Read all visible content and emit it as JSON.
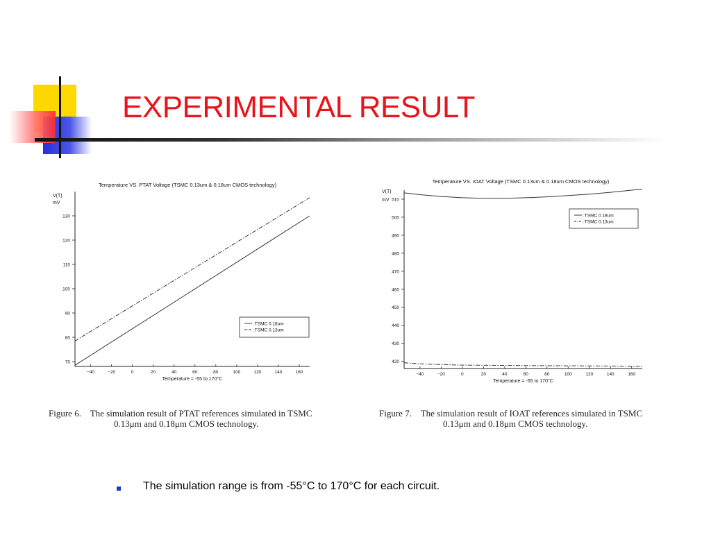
{
  "slide": {
    "title": "EXPERIMENTAL RESULT",
    "bullet": "The simulation range is from -55°C to 170°C for each circuit.",
    "colors": {
      "title": "#e8141c",
      "bullet": "#1a3cc8"
    }
  },
  "captions": [
    {
      "label": "Figure 6.",
      "line1": "The simulation result of PTAT references simulated in TSMC",
      "line2": "0.13μm and 0.18μm CMOS technology."
    },
    {
      "label": "Figure 7.",
      "line1": "The simulation result of IOAT references simulated in TSMC",
      "line2": "0.13μm and 0.18μm CMOS technology."
    }
  ],
  "chart_data": [
    {
      "type": "line",
      "title": "Temperature VS. PTAT Voltage (TSMC 0.13um & 0.18um CMOS technology)",
      "ylabel": "V(T)",
      "yunit": "mV",
      "xlabel": "Temperature = -55 to 170°C",
      "xlim": [
        -55,
        170
      ],
      "ylim": [
        68,
        140
      ],
      "xticks": [
        -40,
        -20,
        0,
        20,
        40,
        60,
        80,
        100,
        120,
        140,
        160
      ],
      "yticks": [
        70,
        80,
        90,
        100,
        110,
        120,
        130
      ],
      "legend_position": "lower-right",
      "series": [
        {
          "name": ":TSMC 0.18um",
          "style": "solid",
          "x": [
            -55,
            170
          ],
          "y": [
            68.5,
            130
          ]
        },
        {
          "name": ":TSMC 0.13um",
          "style": "dashdot",
          "x": [
            -55,
            170
          ],
          "y": [
            78.5,
            137.5
          ]
        }
      ]
    },
    {
      "type": "line",
      "title": "Temperature VS. IOAT Voltage (TSMC 0.13um & 0.18um CMOS technology)",
      "ylabel": "V(T)",
      "yunit": "mV",
      "xlabel": "Temperature = -55 to 170°C",
      "xlim": [
        -55,
        170
      ],
      "ylim": [
        416,
        515
      ],
      "xticks": [
        -40,
        -20,
        0,
        20,
        40,
        60,
        80,
        100,
        120,
        140,
        160
      ],
      "yticks": [
        420,
        430,
        440,
        450,
        460,
        470,
        480,
        490,
        500,
        510
      ],
      "legend_position": "top-right",
      "series": [
        {
          "name": ":TSMC 0.18um",
          "style": "solid",
          "x": [
            -55,
            -40,
            -20,
            0,
            20,
            40,
            60,
            80,
            100,
            120,
            140,
            160,
            170
          ],
          "y": [
            513.5,
            512.5,
            511.5,
            510.8,
            510.5,
            510.5,
            510.8,
            511.3,
            512,
            512.8,
            513.8,
            515,
            515.6
          ]
        },
        {
          "name": ":TSMC 0.13um",
          "style": "dashdot",
          "x": [
            -55,
            -40,
            -20,
            0,
            20,
            60,
            100,
            140,
            170
          ],
          "y": [
            419.2,
            418.6,
            418.2,
            417.9,
            417.8,
            417.6,
            417.5,
            417.4,
            417.2
          ]
        }
      ]
    }
  ]
}
